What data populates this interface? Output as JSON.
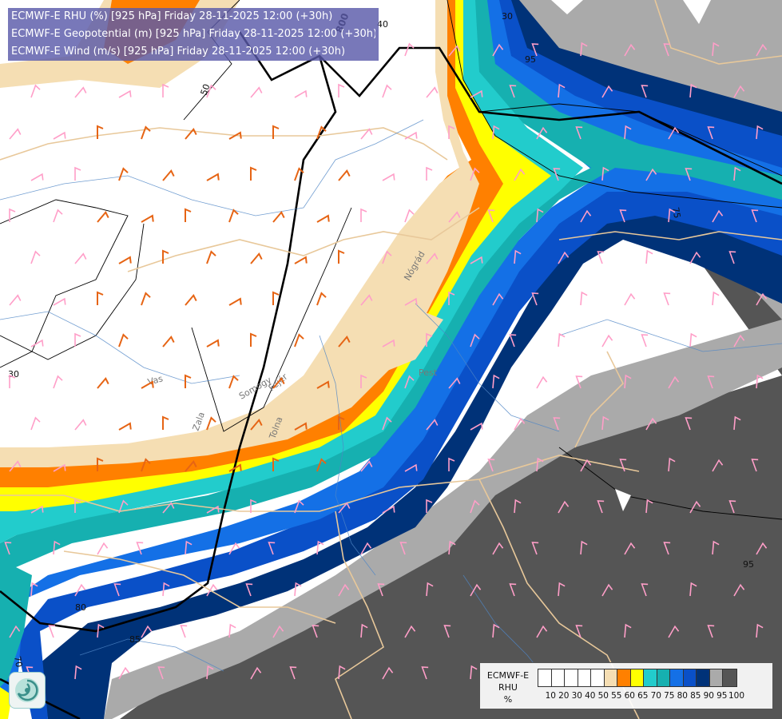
{
  "header": {
    "line1": "ECMWF-E RHU (%) [925 hPa] Friday 28-11-2025 12:00 (+30h)",
    "line2": "ECMWF-E Geopotential (m) [925 hPa] Friday 28-11-2025 12:00 (+30h)",
    "line3": "ECMWF-E Wind (m/s) [925 hPa] Friday 28-11-2025 12:00 (+30h)"
  },
  "legend": {
    "title_lines": [
      "ECMWF-E",
      "RHU",
      "%"
    ],
    "ticks": [
      "10",
      "20",
      "30",
      "40",
      "50",
      "55",
      "60",
      "65",
      "70",
      "75",
      "80",
      "85",
      "90",
      "95",
      "100"
    ],
    "colors": [
      "#ffffff",
      "#ffffff",
      "#ffffff",
      "#ffffff",
      "#ffffff",
      "#f5deb3",
      "#ff8000",
      "#ffff00",
      "#22cccc",
      "#16b0b0",
      "#1470e6",
      "#0a50c8",
      "#003278",
      "#aaaaaa",
      "#555555"
    ]
  },
  "contour_labels": {
    "rhu": [
      "30",
      "40",
      "50",
      "30",
      "70",
      "75",
      "80",
      "85",
      "95",
      "95"
    ],
    "geopotential": [
      "800"
    ]
  },
  "place_labels": [
    "Vas",
    "Zala",
    "Somogy",
    "Tolna",
    "Fejér",
    "Pest",
    "Nógrád"
  ],
  "colors": {
    "orange_barb": "#e66414",
    "pink_barb": "#ff9ec8",
    "border_line": "#e8c89a",
    "river": "#4f86c6"
  }
}
